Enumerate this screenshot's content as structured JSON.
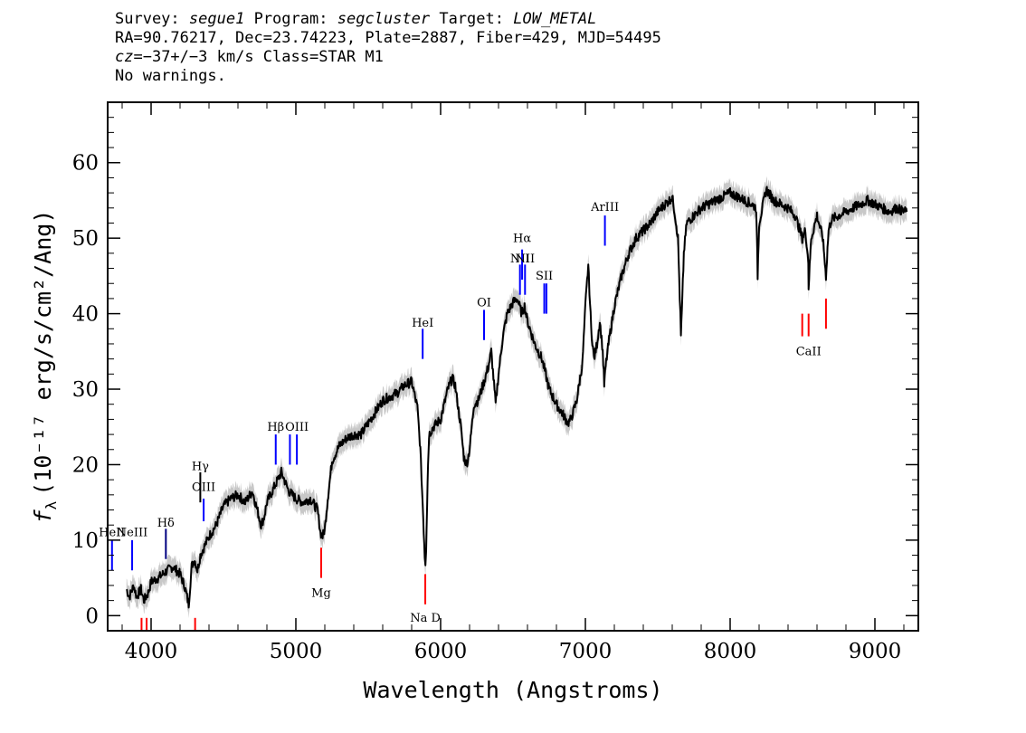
{
  "header": {
    "survey_label": "Survey:",
    "survey": "segue1",
    "program_label": "Program:",
    "program": "segcluster",
    "target_label": "Target:",
    "target": "LOW_METAL",
    "line2": "RA=90.76217, Dec=23.74223, Plate=2887, Fiber=429, MJD=54495",
    "cz_label": "cz",
    "cz_value": "=−37+/−3",
    "cz_rest": " km/s Class=STAR M1",
    "line4": "No warnings."
  },
  "chart_data": {
    "type": "line",
    "xlabel": "Wavelength (Angstroms)",
    "ylabel_main": "f",
    "ylabel_sub": "λ",
    "ylabel_unit": "(10⁻¹⁷ erg/s/cm²/Ang)",
    "xlim": [
      3700,
      9300
    ],
    "ylim": [
      -2,
      68
    ],
    "xticks": [
      4000,
      5000,
      6000,
      7000,
      8000,
      9000
    ],
    "yticks": [
      0,
      10,
      20,
      30,
      40,
      50,
      60
    ],
    "colors": {
      "spectrum": "#000000",
      "error_band": "#c8c8c8",
      "emission": "#0000ff",
      "absorption": "#ff0000"
    },
    "series": [
      {
        "x": [
          3830,
          3850,
          3880,
          3900,
          3930,
          3950,
          3980,
          4000,
          4050,
          4100,
          4150,
          4200,
          4230,
          4260,
          4280,
          4300,
          4320,
          4340,
          4400,
          4450,
          4500,
          4550,
          4600,
          4650,
          4700,
          4740,
          4760,
          4780,
          4800,
          4850,
          4900,
          4950,
          5000,
          5050,
          5100,
          5150,
          5170,
          5185,
          5200,
          5220,
          5250,
          5300,
          5350,
          5400,
          5450,
          5500,
          5550,
          5600,
          5650,
          5700,
          5750,
          5800,
          5840,
          5860,
          5880,
          5890,
          5895,
          5900,
          5910,
          5920,
          5950,
          6000,
          6050,
          6080,
          6100,
          6140,
          6160,
          6180,
          6200,
          6210,
          6230,
          6260,
          6300,
          6330,
          6350,
          6380,
          6400,
          6430,
          6460,
          6500,
          6530,
          6560,
          6580,
          6600,
          6650,
          6700,
          6750,
          6800,
          6850,
          6880,
          6900,
          6940,
          6980,
          7000,
          7020,
          7040,
          7060,
          7080,
          7100,
          7120,
          7130,
          7140,
          7160,
          7200,
          7250,
          7300,
          7350,
          7400,
          7450,
          7500,
          7550,
          7580,
          7600,
          7620,
          7640,
          7660,
          7670,
          7680,
          7700,
          7750,
          7800,
          7850,
          7900,
          7950,
          8000,
          8050,
          8100,
          8150,
          8180,
          8190,
          8200,
          8250,
          8300,
          8350,
          8400,
          8450,
          8498,
          8520,
          8540,
          8542,
          8560,
          8600,
          8640,
          8662,
          8680,
          8700,
          8750,
          8800,
          8850,
          8900,
          8950,
          9000,
          9050,
          9100,
          9150,
          9200,
          9220
        ],
        "y": [
          3.5,
          2.5,
          4.0,
          2.5,
          3.5,
          2.0,
          3.0,
          4.5,
          5.0,
          5.8,
          6.5,
          5.5,
          4.0,
          1.5,
          6.5,
          7.5,
          6.0,
          8.0,
          10.5,
          12.0,
          14.5,
          15.5,
          16.0,
          15.0,
          16.5,
          13.5,
          12.0,
          13.0,
          15.0,
          17.0,
          19.0,
          16.5,
          15.5,
          15.0,
          15.5,
          14.0,
          11.0,
          10.5,
          11.5,
          15.5,
          20.5,
          22.5,
          23.5,
          24.0,
          24.0,
          25.5,
          27.0,
          28.5,
          29.0,
          29.5,
          30.5,
          31.0,
          27.5,
          22.0,
          13.0,
          8.0,
          7.0,
          9.0,
          18.0,
          24.0,
          25.0,
          26.0,
          30.0,
          31.5,
          30.5,
          25.0,
          21.0,
          20.0,
          22.0,
          24.0,
          28.0,
          28.5,
          31.0,
          33.0,
          35.0,
          28.0,
          32.0,
          37.0,
          40.0,
          41.5,
          42.0,
          40.0,
          41.0,
          39.0,
          36.0,
          34.0,
          30.0,
          28.0,
          26.5,
          25.5,
          26.0,
          28.5,
          33.5,
          41.0,
          46.5,
          38.0,
          34.0,
          36.0,
          39.0,
          35.0,
          30.5,
          33.0,
          36.0,
          41.0,
          45.0,
          48.0,
          50.0,
          51.0,
          52.0,
          53.5,
          54.5,
          55.0,
          55.5,
          53.0,
          50.0,
          37.0,
          42.0,
          48.0,
          52.0,
          53.0,
          54.0,
          54.5,
          55.0,
          55.5,
          56.0,
          55.5,
          55.0,
          54.5,
          54.0,
          45.0,
          52.0,
          56.5,
          55.0,
          54.5,
          54.0,
          53.0,
          50.0,
          51.0,
          47.0,
          43.5,
          50.0,
          53.0,
          50.0,
          45.0,
          51.0,
          52.5,
          53.0,
          53.5,
          54.0,
          54.5,
          55.0,
          54.5,
          54.0,
          53.5,
          54.0,
          53.5,
          53.5
        ]
      }
    ],
    "line_markers": [
      {
        "label": "HeII",
        "wavelength": 3730,
        "color": "#0000ff",
        "y_top": 10.0,
        "y_bottom": 6.0,
        "label_y": 10.5
      },
      {
        "label": "NeIII",
        "wavelength": 3869,
        "color": "#0000ff",
        "y_top": 10.0,
        "y_bottom": 6.0,
        "label_y": 10.5
      },
      {
        "label": "Hδ",
        "wavelength": 4102,
        "color": "#000080",
        "y_top": 11.5,
        "y_bottom": 7.5,
        "label_y": 11.8
      },
      {
        "label": "Hγ",
        "wavelength": 4340,
        "color": "#000000",
        "y_top": 19.0,
        "y_bottom": 15.0,
        "label_y": 19.3
      },
      {
        "label": "OIII",
        "wavelength": 4363,
        "color": "#0000ff",
        "y_top": 15.5,
        "y_bottom": 12.5,
        "label_y": 16.5
      },
      {
        "label": "Hβ",
        "wavelength": 4861,
        "color": "#0000ff",
        "y_top": 24.0,
        "y_bottom": 20.0,
        "label_y": 24.5
      },
      {
        "label": "OIII",
        "wavelength": 4959,
        "color": "#0000ff",
        "y_top": 24.0,
        "y_bottom": 20.0,
        "label_y": null
      },
      {
        "label": "OIII",
        "wavelength": 5007,
        "color": "#0000ff",
        "y_top": 24.0,
        "y_bottom": 20.0,
        "label_y": 24.5
      },
      {
        "label": "HeI",
        "wavelength": 5876,
        "color": "#0000ff",
        "y_top": 38.0,
        "y_bottom": 34.0,
        "label_y": 38.3
      },
      {
        "label": "OI",
        "wavelength": 6300,
        "color": "#0000ff",
        "y_top": 40.5,
        "y_bottom": 36.5,
        "label_y": 41.0
      },
      {
        "label": "NII",
        "wavelength": 6548,
        "color": "#0000ff",
        "y_top": 46.5,
        "y_bottom": 42.5,
        "label_y": 46.8
      },
      {
        "label": "Hα",
        "wavelength": 6563,
        "color": "#0000ff",
        "y_top": 48.5,
        "y_bottom": 44.5,
        "label_y": 49.5
      },
      {
        "label": "NII",
        "wavelength": 6583,
        "color": "#0000ff",
        "y_top": 46.5,
        "y_bottom": 42.5,
        "label_y": 46.8
      },
      {
        "label": "SII",
        "wavelength": 6716,
        "color": "#0000ff",
        "y_top": 44.0,
        "y_bottom": 40.0,
        "label_y": 44.5
      },
      {
        "label": "SII",
        "wavelength": 6731,
        "color": "#0000ff",
        "y_top": 44.0,
        "y_bottom": 40.0,
        "label_y": null
      },
      {
        "label": "ArIII",
        "wavelength": 7135,
        "color": "#0000ff",
        "y_top": 53.0,
        "y_bottom": 49.0,
        "label_y": 53.6
      },
      {
        "label": "",
        "wavelength": 3934,
        "color": "#ff0000",
        "y_top": -0.3,
        "y_bottom": -2.0,
        "label_y": null
      },
      {
        "label": "",
        "wavelength": 3969,
        "color": "#ff0000",
        "y_top": -0.3,
        "y_bottom": -2.0,
        "label_y": null
      },
      {
        "label": "",
        "wavelength": 4304,
        "color": "#ff0000",
        "y_top": -0.3,
        "y_bottom": -2.0,
        "label_y": null
      },
      {
        "label": "Mg",
        "wavelength": 5175,
        "color": "#ff0000",
        "y_top": 9.0,
        "y_bottom": 5.0,
        "label_y": 2.5
      },
      {
        "label": "Na D",
        "wavelength": 5894,
        "color": "#ff0000",
        "y_top": 5.5,
        "y_bottom": 1.5,
        "label_y": -0.8
      },
      {
        "label": "",
        "wavelength": 8498,
        "color": "#ff0000",
        "y_top": 40.0,
        "y_bottom": 37.0,
        "label_y": null
      },
      {
        "label": "CaII",
        "wavelength": 8542,
        "color": "#ff0000",
        "y_top": 40.0,
        "y_bottom": 37.0,
        "label_y": 34.5
      },
      {
        "label": "",
        "wavelength": 8662,
        "color": "#ff0000",
        "y_top": 42.0,
        "y_bottom": 38.0,
        "label_y": null
      }
    ]
  }
}
